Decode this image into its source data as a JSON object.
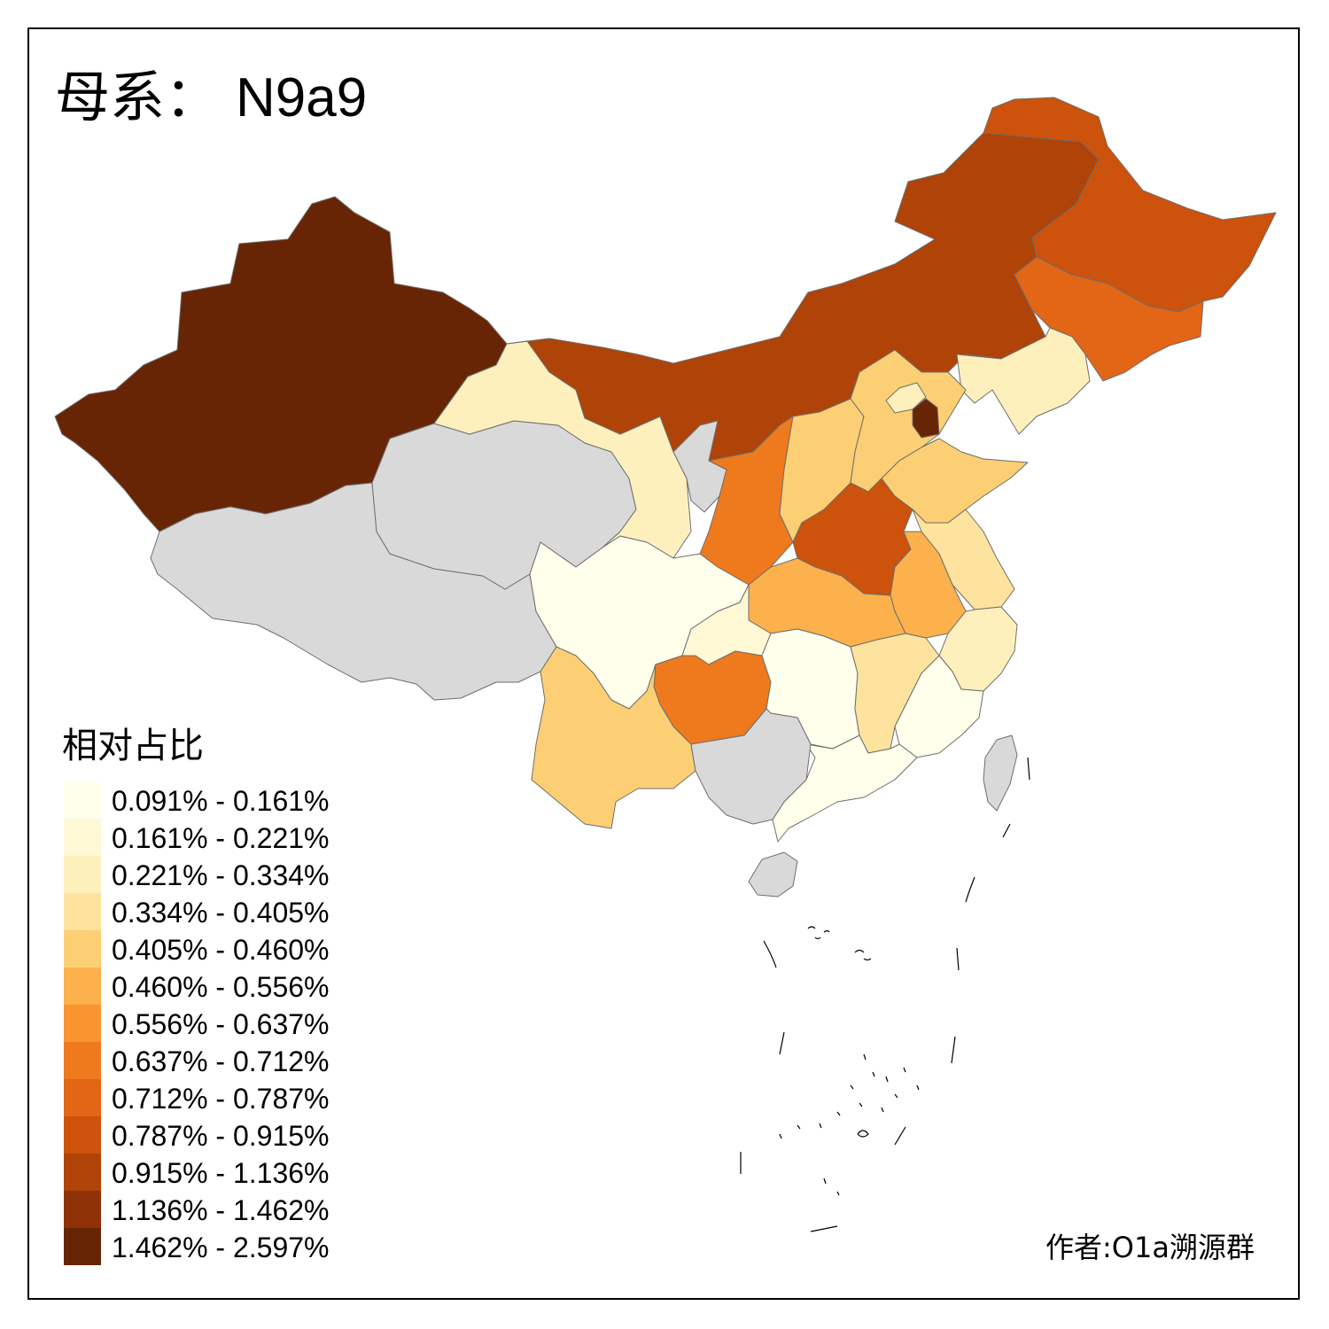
{
  "title": {
    "prefix": "母系：",
    "haplogroup": "N9a9"
  },
  "legend": {
    "title": "相对占比",
    "bins": [
      {
        "label": "0.091% - 0.161%",
        "color": "#FFFFEB"
      },
      {
        "label": "0.161% - 0.221%",
        "color": "#FFF8D5"
      },
      {
        "label": "0.221% - 0.334%",
        "color": "#FEF0BD"
      },
      {
        "label": "0.334% - 0.405%",
        "color": "#FEE39E"
      },
      {
        "label": "0.405% - 0.460%",
        "color": "#FDCF74"
      },
      {
        "label": "0.460% - 0.556%",
        "color": "#FCB14C"
      },
      {
        "label": "0.556% - 0.637%",
        "color": "#F99530"
      },
      {
        "label": "0.637% - 0.712%",
        "color": "#EF7A1E"
      },
      {
        "label": "0.712% - 0.787%",
        "color": "#E26615"
      },
      {
        "label": "0.787% - 0.915%",
        "color": "#CD520B"
      },
      {
        "label": "0.915% - 1.136%",
        "color": "#B04308"
      },
      {
        "label": "1.136% - 1.462%",
        "color": "#8E3205"
      },
      {
        "label": "1.462% - 2.597%",
        "color": "#672505"
      }
    ],
    "no_data_color": "#D9D9D9"
  },
  "author": "作者:O1a溯源群",
  "regions": [
    {
      "name": "xinjiang",
      "bin": 12
    },
    {
      "name": "tibet",
      "bin": -1
    },
    {
      "name": "qinghai",
      "bin": -1
    },
    {
      "name": "gansu",
      "bin": 2
    },
    {
      "name": "inner-mongolia",
      "bin": 10
    },
    {
      "name": "heilongjiang",
      "bin": 9
    },
    {
      "name": "jilin",
      "bin": 8
    },
    {
      "name": "liaoning",
      "bin": 2
    },
    {
      "name": "ningxia",
      "bin": -1
    },
    {
      "name": "shaanxi",
      "bin": 7
    },
    {
      "name": "shanxi",
      "bin": 4
    },
    {
      "name": "hebei",
      "bin": 4
    },
    {
      "name": "beijing",
      "bin": 2
    },
    {
      "name": "tianjin",
      "bin": 12
    },
    {
      "name": "shandong",
      "bin": 4
    },
    {
      "name": "henan",
      "bin": 9
    },
    {
      "name": "jiangsu",
      "bin": 3
    },
    {
      "name": "anhui",
      "bin": 5
    },
    {
      "name": "hubei",
      "bin": 5
    },
    {
      "name": "sichuan",
      "bin": 0
    },
    {
      "name": "chongqing",
      "bin": 1
    },
    {
      "name": "guizhou",
      "bin": 7
    },
    {
      "name": "yunnan",
      "bin": 4
    },
    {
      "name": "hunan",
      "bin": 0
    },
    {
      "name": "jiangxi",
      "bin": 3
    },
    {
      "name": "zhejiang",
      "bin": 2
    },
    {
      "name": "fujian",
      "bin": 0
    },
    {
      "name": "guangdong",
      "bin": 0
    },
    {
      "name": "guangxi",
      "bin": -1
    },
    {
      "name": "hainan",
      "bin": -1
    },
    {
      "name": "taiwan",
      "bin": -1
    }
  ]
}
